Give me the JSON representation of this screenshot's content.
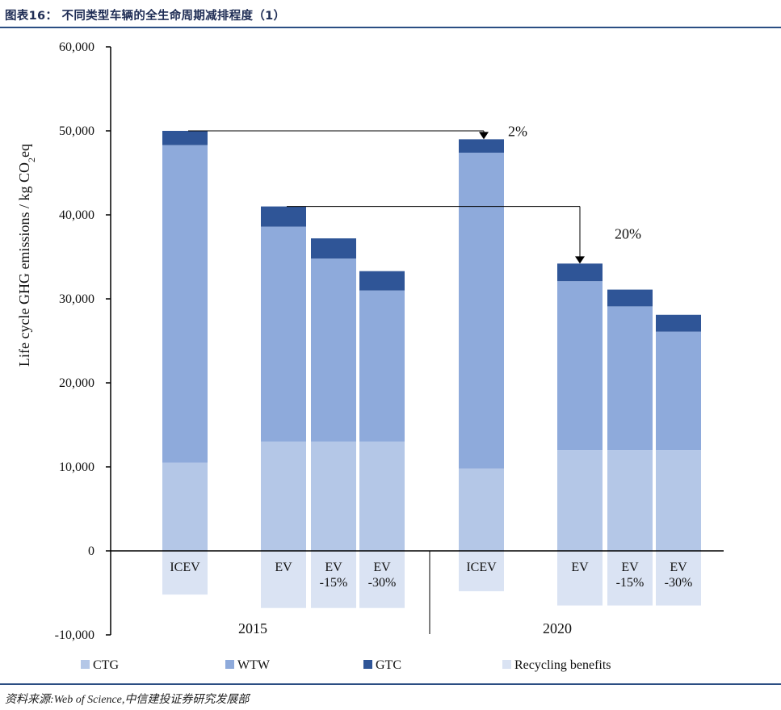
{
  "header": {
    "title": "图表16： 不同类型车辆的全生命周期减排程度（1）"
  },
  "footer": {
    "source": "资料来源:Web of Science,中信建投证券研究发展部"
  },
  "chart_data": {
    "type": "bar",
    "stacked": true,
    "ylabel": "Life cycle GHG emissions / kg CO2eq",
    "ylim": [
      -10000,
      60000
    ],
    "yticks": [
      -10000,
      0,
      10000,
      20000,
      30000,
      40000,
      50000,
      60000
    ],
    "ytick_labels": [
      "-10,000",
      "0",
      "10,000",
      "20,000",
      "30,000",
      "40,000",
      "50,000",
      "60,000"
    ],
    "groups": [
      {
        "label": "2015",
        "categories": [
          "ICEV",
          "EV",
          "EV -15%",
          "EV -30%"
        ]
      },
      {
        "label": "2020",
        "categories": [
          "ICEV",
          "EV",
          "EV -15%",
          "EV -30%"
        ]
      }
    ],
    "bars": [
      {
        "group": "2015",
        "label": "ICEV",
        "label_lines": [
          "ICEV"
        ],
        "CTG": 10500,
        "WTW": 37800,
        "GTC": 1700,
        "Recycling benefits": -5200
      },
      {
        "group": "2015",
        "label": "EV",
        "label_lines": [
          "EV"
        ],
        "CTG": 13000,
        "WTW": 25600,
        "GTC": 2400,
        "Recycling benefits": -6800
      },
      {
        "group": "2015",
        "label": "EV -15%",
        "label_lines": [
          "EV",
          "-15%"
        ],
        "CTG": 13000,
        "WTW": 21800,
        "GTC": 2400,
        "Recycling benefits": -6800
      },
      {
        "group": "2015",
        "label": "EV -30%",
        "label_lines": [
          "EV",
          "-30%"
        ],
        "CTG": 13000,
        "WTW": 18000,
        "GTC": 2300,
        "Recycling benefits": -6800
      },
      {
        "group": "2020",
        "label": "ICEV",
        "label_lines": [
          "ICEV"
        ],
        "CTG": 9800,
        "WTW": 37600,
        "GTC": 1600,
        "Recycling benefits": -4800
      },
      {
        "group": "2020",
        "label": "EV",
        "label_lines": [
          "EV"
        ],
        "CTG": 12000,
        "WTW": 20100,
        "GTC": 2100,
        "Recycling benefits": -6500
      },
      {
        "group": "2020",
        "label": "EV -15%",
        "label_lines": [
          "EV",
          "-15%"
        ],
        "CTG": 12000,
        "WTW": 17100,
        "GTC": 2000,
        "Recycling benefits": -6500
      },
      {
        "group": "2020",
        "label": "EV -30%",
        "label_lines": [
          "EV",
          "-30%"
        ],
        "CTG": 12000,
        "WTW": 14100,
        "GTC": 2000,
        "Recycling benefits": -6500
      }
    ],
    "series": [
      {
        "name": "CTG",
        "color": "#b4c7e7"
      },
      {
        "name": "WTW",
        "color": "#8eaadb"
      },
      {
        "name": "GTC",
        "color": "#2f5597"
      },
      {
        "name": "Recycling benefits",
        "color": "#dae3f3"
      }
    ],
    "annotations": [
      {
        "text": "2%",
        "from_bar": 0,
        "to_bar": 4,
        "from_value": 50000,
        "to_value": 49000
      },
      {
        "text": "20%",
        "from_bar": 1,
        "to_bar": 5,
        "from_value": 41000,
        "to_value": 34200
      }
    ],
    "legend_position": "bottom"
  }
}
